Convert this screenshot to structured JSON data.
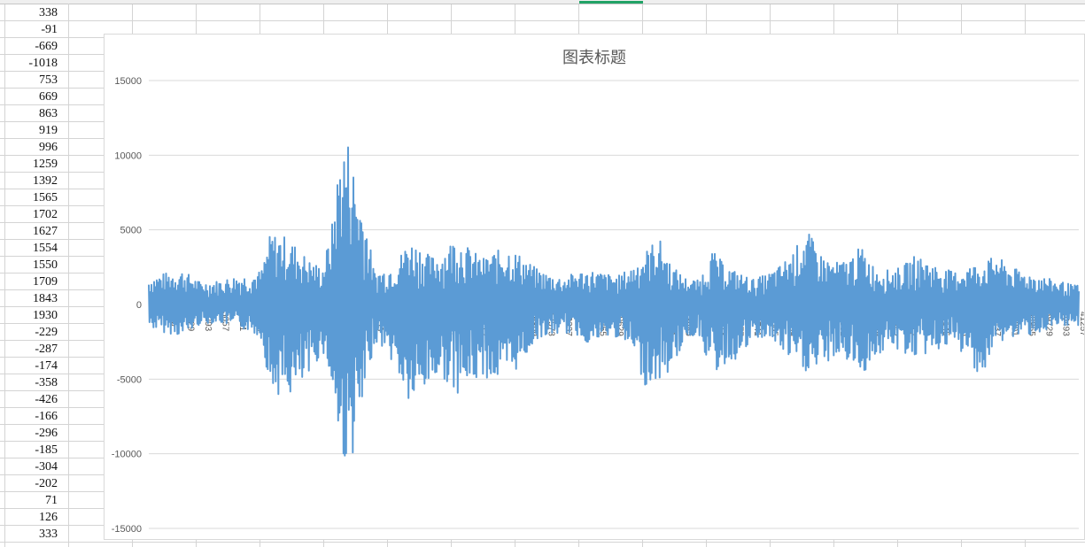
{
  "spreadsheet": {
    "column_a_values": [
      "338",
      "-91",
      "-669",
      "-1018",
      "753",
      "669",
      "863",
      "919",
      "996",
      "1259",
      "1392",
      "1565",
      "1702",
      "1627",
      "1554",
      "1550",
      "1709",
      "1843",
      "1930",
      "-229",
      "-287",
      "-174",
      "-358",
      "-426",
      "-166",
      "-296",
      "-185",
      "-304",
      "-202",
      "71",
      "126",
      "333"
    ]
  },
  "chart_data": {
    "type": "line",
    "title": "图表标题",
    "ylim": [
      -15000,
      15000
    ],
    "y_ticks": [
      "15000",
      "10000",
      "5000",
      "0",
      "-5000",
      "-10000",
      "-15000"
    ],
    "x_tick_labels": [
      "1",
      "765",
      "1529",
      "2293",
      "3057",
      "3821",
      "4585",
      "5349",
      "6113",
      "6877",
      "7641",
      "8405",
      "9169",
      "9933",
      "10697",
      "11461",
      "12225",
      "12989",
      "13753",
      "14517",
      "15281",
      "16045",
      "16809",
      "17573",
      "18337",
      "19101",
      "19865",
      "20629",
      "21393",
      "22157",
      "22921",
      "23685",
      "24449",
      "25213",
      "25977",
      "26741",
      "27505",
      "28269",
      "29033",
      "29797",
      "30561",
      "31325",
      "32089",
      "32853",
      "33617",
      "34381",
      "35145",
      "35909",
      "36673",
      "37437",
      "38201",
      "38965",
      "39729",
      "40493",
      "41257"
    ],
    "x_max": 41257,
    "gridlines": true,
    "series_color": "#5b9bd5",
    "series": [
      {
        "points_x": [
          1,
          700,
          1500,
          2300,
          3100,
          3800,
          4500,
          5000,
          5400,
          6000,
          6500,
          7100,
          7700,
          8100,
          8500,
          8900,
          9200,
          9600,
          10000,
          10500,
          11000,
          11500,
          12000,
          12500,
          13000,
          13600,
          14200,
          14800,
          15400,
          16000,
          16600,
          17200,
          17800,
          18400,
          19000,
          19600,
          20200,
          20800,
          21400,
          22000,
          22600,
          23200,
          23800,
          24400,
          25000,
          25600,
          26200,
          26800,
          27400,
          28000,
          28600,
          29200,
          29800,
          30400,
          31000,
          31600,
          32200,
          32800,
          33400,
          34000,
          34600,
          35200,
          35800,
          36400,
          37000,
          37600,
          38200,
          38800,
          39400,
          40000,
          40600,
          41000
        ],
        "upper": [
          1800,
          2100,
          2300,
          1500,
          1600,
          1900,
          2000,
          2300,
          4800,
          4600,
          4000,
          3000,
          2500,
          5000,
          10500,
          11200,
          8000,
          6000,
          2200,
          2400,
          2900,
          4300,
          4000,
          3200,
          3500,
          4600,
          3800,
          3100,
          3600,
          3800,
          3200,
          2400,
          2000,
          1800,
          2200,
          2300,
          2100,
          1900,
          2500,
          3500,
          4600,
          2600,
          1800,
          1600,
          3600,
          2600,
          2100,
          1700,
          2000,
          2600,
          3600,
          5000,
          3400,
          2800,
          3000,
          3900,
          2500,
          2300,
          2500,
          3300,
          2900,
          2400,
          2200,
          2600,
          2800,
          3300,
          2500,
          2200,
          2000,
          1700,
          1500,
          1300
        ],
        "lower": [
          -1500,
          -1900,
          -2100,
          -1300,
          -1200,
          -1500,
          -1800,
          -2300,
          -5800,
          -6200,
          -6000,
          -5100,
          -3000,
          -5500,
          -10000,
          -11000,
          -9000,
          -6500,
          -2500,
          -3000,
          -4500,
          -6700,
          -6500,
          -5200,
          -4800,
          -6000,
          -5500,
          -4800,
          -5200,
          -5000,
          -3800,
          -2300,
          -2100,
          -1900,
          -2100,
          -2700,
          -2300,
          -2200,
          -3000,
          -5400,
          -5200,
          -4400,
          -2300,
          -2000,
          -4800,
          -4000,
          -3600,
          -2500,
          -2200,
          -3000,
          -4000,
          -4600,
          -4400,
          -3500,
          -3800,
          -4800,
          -3600,
          -3000,
          -3200,
          -3600,
          -3300,
          -2900,
          -2900,
          -3800,
          -5000,
          -2600,
          -2300,
          -2100,
          -1900,
          -1800,
          -1600,
          -1400
        ]
      }
    ]
  }
}
